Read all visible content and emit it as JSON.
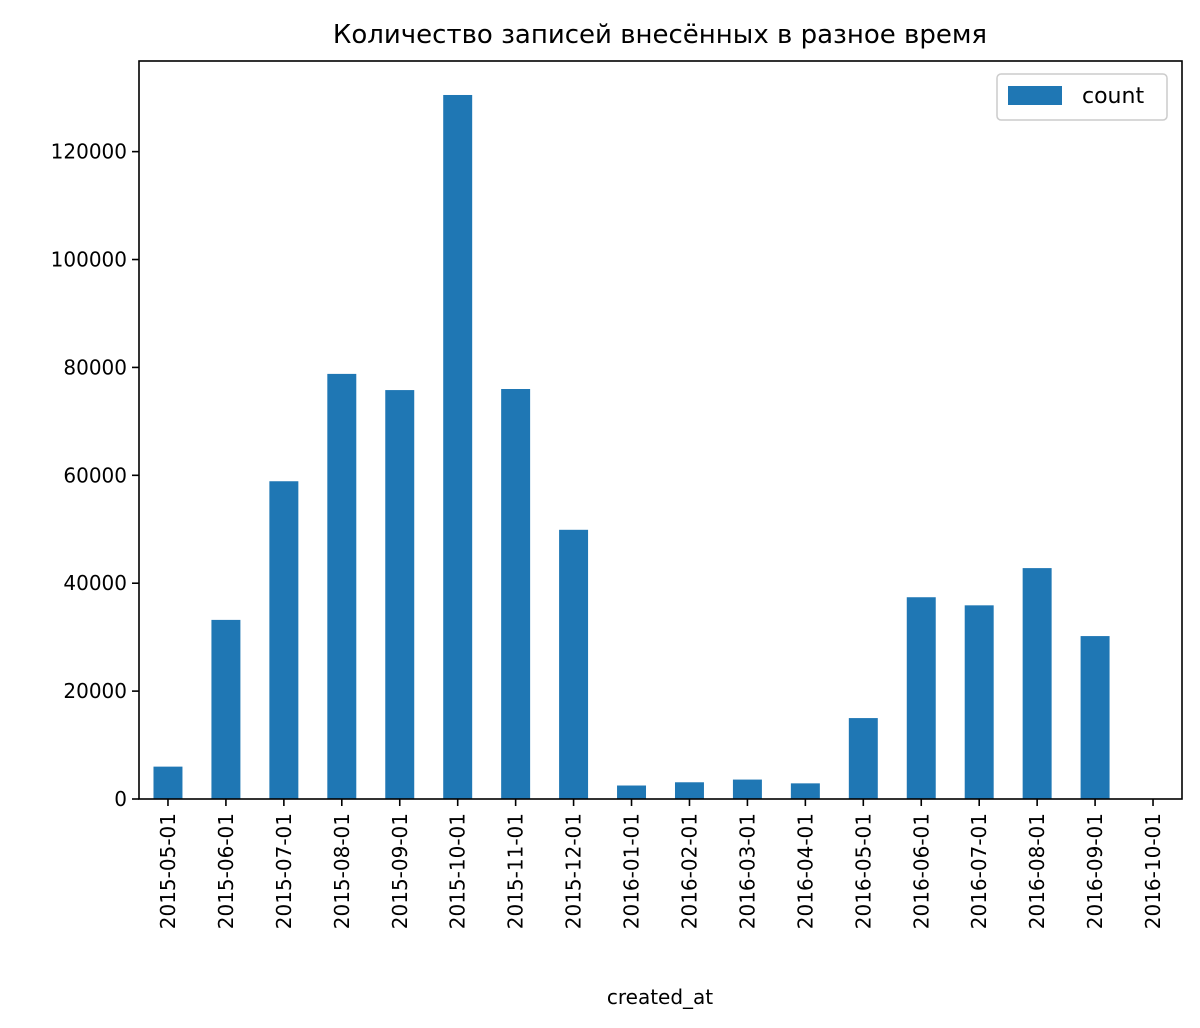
{
  "chart_data": {
    "type": "bar",
    "title": "Количество записей внесённых в разное время",
    "xlabel": "created_at",
    "ylabel": "",
    "categories": [
      "2015-05-01",
      "2015-06-01",
      "2015-07-01",
      "2015-08-01",
      "2015-09-01",
      "2015-10-01",
      "2015-11-01",
      "2015-12-01",
      "2016-01-01",
      "2016-02-01",
      "2016-03-01",
      "2016-04-01",
      "2016-05-01",
      "2016-06-01",
      "2016-07-01",
      "2016-08-01",
      "2016-09-01",
      "2016-10-01"
    ],
    "series": [
      {
        "name": "count",
        "color": "#1f77b4",
        "values": [
          6000,
          33200,
          58900,
          78800,
          75800,
          130500,
          76000,
          49900,
          2500,
          3100,
          3600,
          2900,
          15000,
          37400,
          35900,
          42800,
          30200,
          0
        ]
      }
    ],
    "ylim": [
      0,
      136800
    ],
    "yticks": [
      0,
      20000,
      40000,
      60000,
      80000,
      100000,
      120000
    ],
    "ytick_labels": [
      "0",
      "20000",
      "40000",
      "60000",
      "80000",
      "100000",
      "120000"
    ],
    "grid": false,
    "legend": {
      "placement": "top-right",
      "label": "count"
    }
  }
}
